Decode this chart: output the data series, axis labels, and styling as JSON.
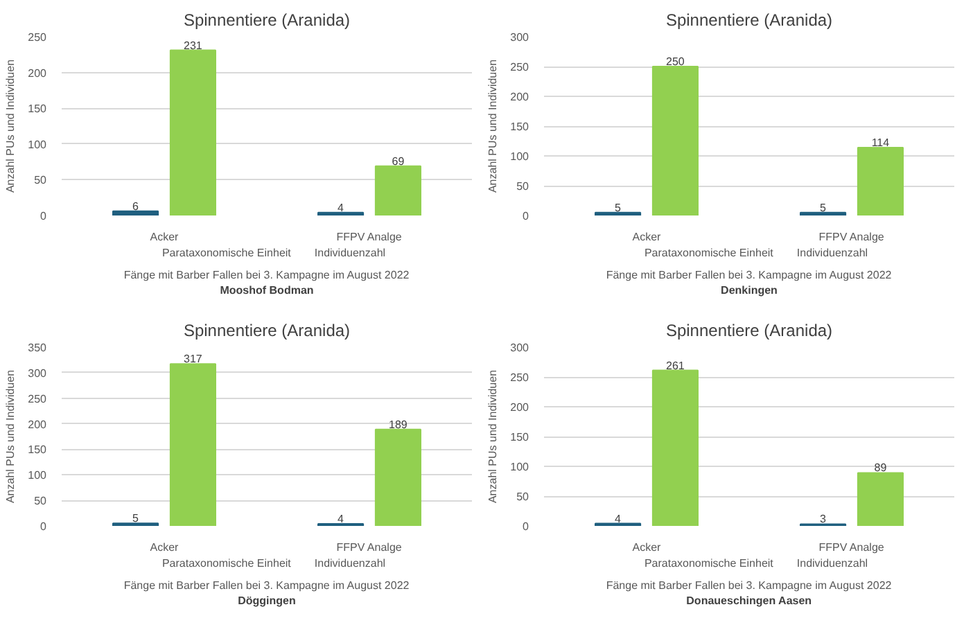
{
  "chart_data": [
    {
      "type": "bar",
      "title": "Spinnentiere (Aranida)",
      "ylabel": "Anzahl PUs und Individuen",
      "categories": [
        "Acker",
        "FFPV Analge"
      ],
      "series": [
        {
          "name": "Parataxonomische Einheit",
          "color": "#1f5f7f",
          "values": [
            6,
            4
          ]
        },
        {
          "name": "Individuenzahl",
          "color": "#92d050",
          "values": [
            231,
            69
          ]
        }
      ],
      "ylim": [
        0,
        250
      ],
      "yticks": [
        0,
        50,
        100,
        150,
        200,
        250
      ],
      "grid": "y",
      "legend": "bottom",
      "data_labels": true,
      "annotations": [
        "Fänge mit Barber Fallen bei 3. Kampagne im August 2022",
        "Mooshof Bodman"
      ]
    },
    {
      "type": "bar",
      "title": "Spinnentiere (Aranida)",
      "ylabel": "Anzahl PUs und Individuen",
      "categories": [
        "Acker",
        "FFPV Analge"
      ],
      "series": [
        {
          "name": "Parataxonomische Einheit",
          "color": "#1f5f7f",
          "values": [
            5,
            5
          ]
        },
        {
          "name": "Individuenzahl",
          "color": "#92d050",
          "values": [
            250,
            114
          ]
        }
      ],
      "ylim": [
        0,
        300
      ],
      "yticks": [
        0,
        50,
        100,
        150,
        200,
        250,
        300
      ],
      "grid": "y",
      "legend": "bottom",
      "data_labels": true,
      "annotations": [
        "Fänge mit Barber Fallen bei 3. Kampagne im August 2022",
        "Denkingen"
      ]
    },
    {
      "type": "bar",
      "title": "Spinnentiere (Aranida)",
      "ylabel": "Anzahl PUs und Individuen",
      "categories": [
        "Acker",
        "FFPV Analge"
      ],
      "series": [
        {
          "name": "Parataxonomische Einheit",
          "color": "#1f5f7f",
          "values": [
            5,
            4
          ]
        },
        {
          "name": "Individuenzahl",
          "color": "#92d050",
          "values": [
            317,
            189
          ]
        }
      ],
      "ylim": [
        0,
        350
      ],
      "yticks": [
        0,
        50,
        100,
        150,
        200,
        250,
        300,
        350
      ],
      "grid": "y",
      "legend": "bottom",
      "data_labels": true,
      "annotations": [
        "Fänge mit Barber Fallen bei 3. Kampagne im August 2022",
        "Döggingen"
      ]
    },
    {
      "type": "bar",
      "title": "Spinnentiere (Aranida)",
      "ylabel": "Anzahl PUs und Individuen",
      "categories": [
        "Acker",
        "FFPV Analge"
      ],
      "series": [
        {
          "name": "Parataxonomische Einheit",
          "color": "#1f5f7f",
          "values": [
            4,
            3
          ]
        },
        {
          "name": "Individuenzahl",
          "color": "#92d050",
          "values": [
            261,
            89
          ]
        }
      ],
      "ylim": [
        0,
        300
      ],
      "yticks": [
        0,
        50,
        100,
        150,
        200,
        250,
        300
      ],
      "grid": "y",
      "legend": "bottom",
      "data_labels": true,
      "annotations": [
        "Fänge mit Barber Fallen bei 3. Kampagne im August 2022",
        "Donaueschingen Aasen"
      ]
    }
  ]
}
